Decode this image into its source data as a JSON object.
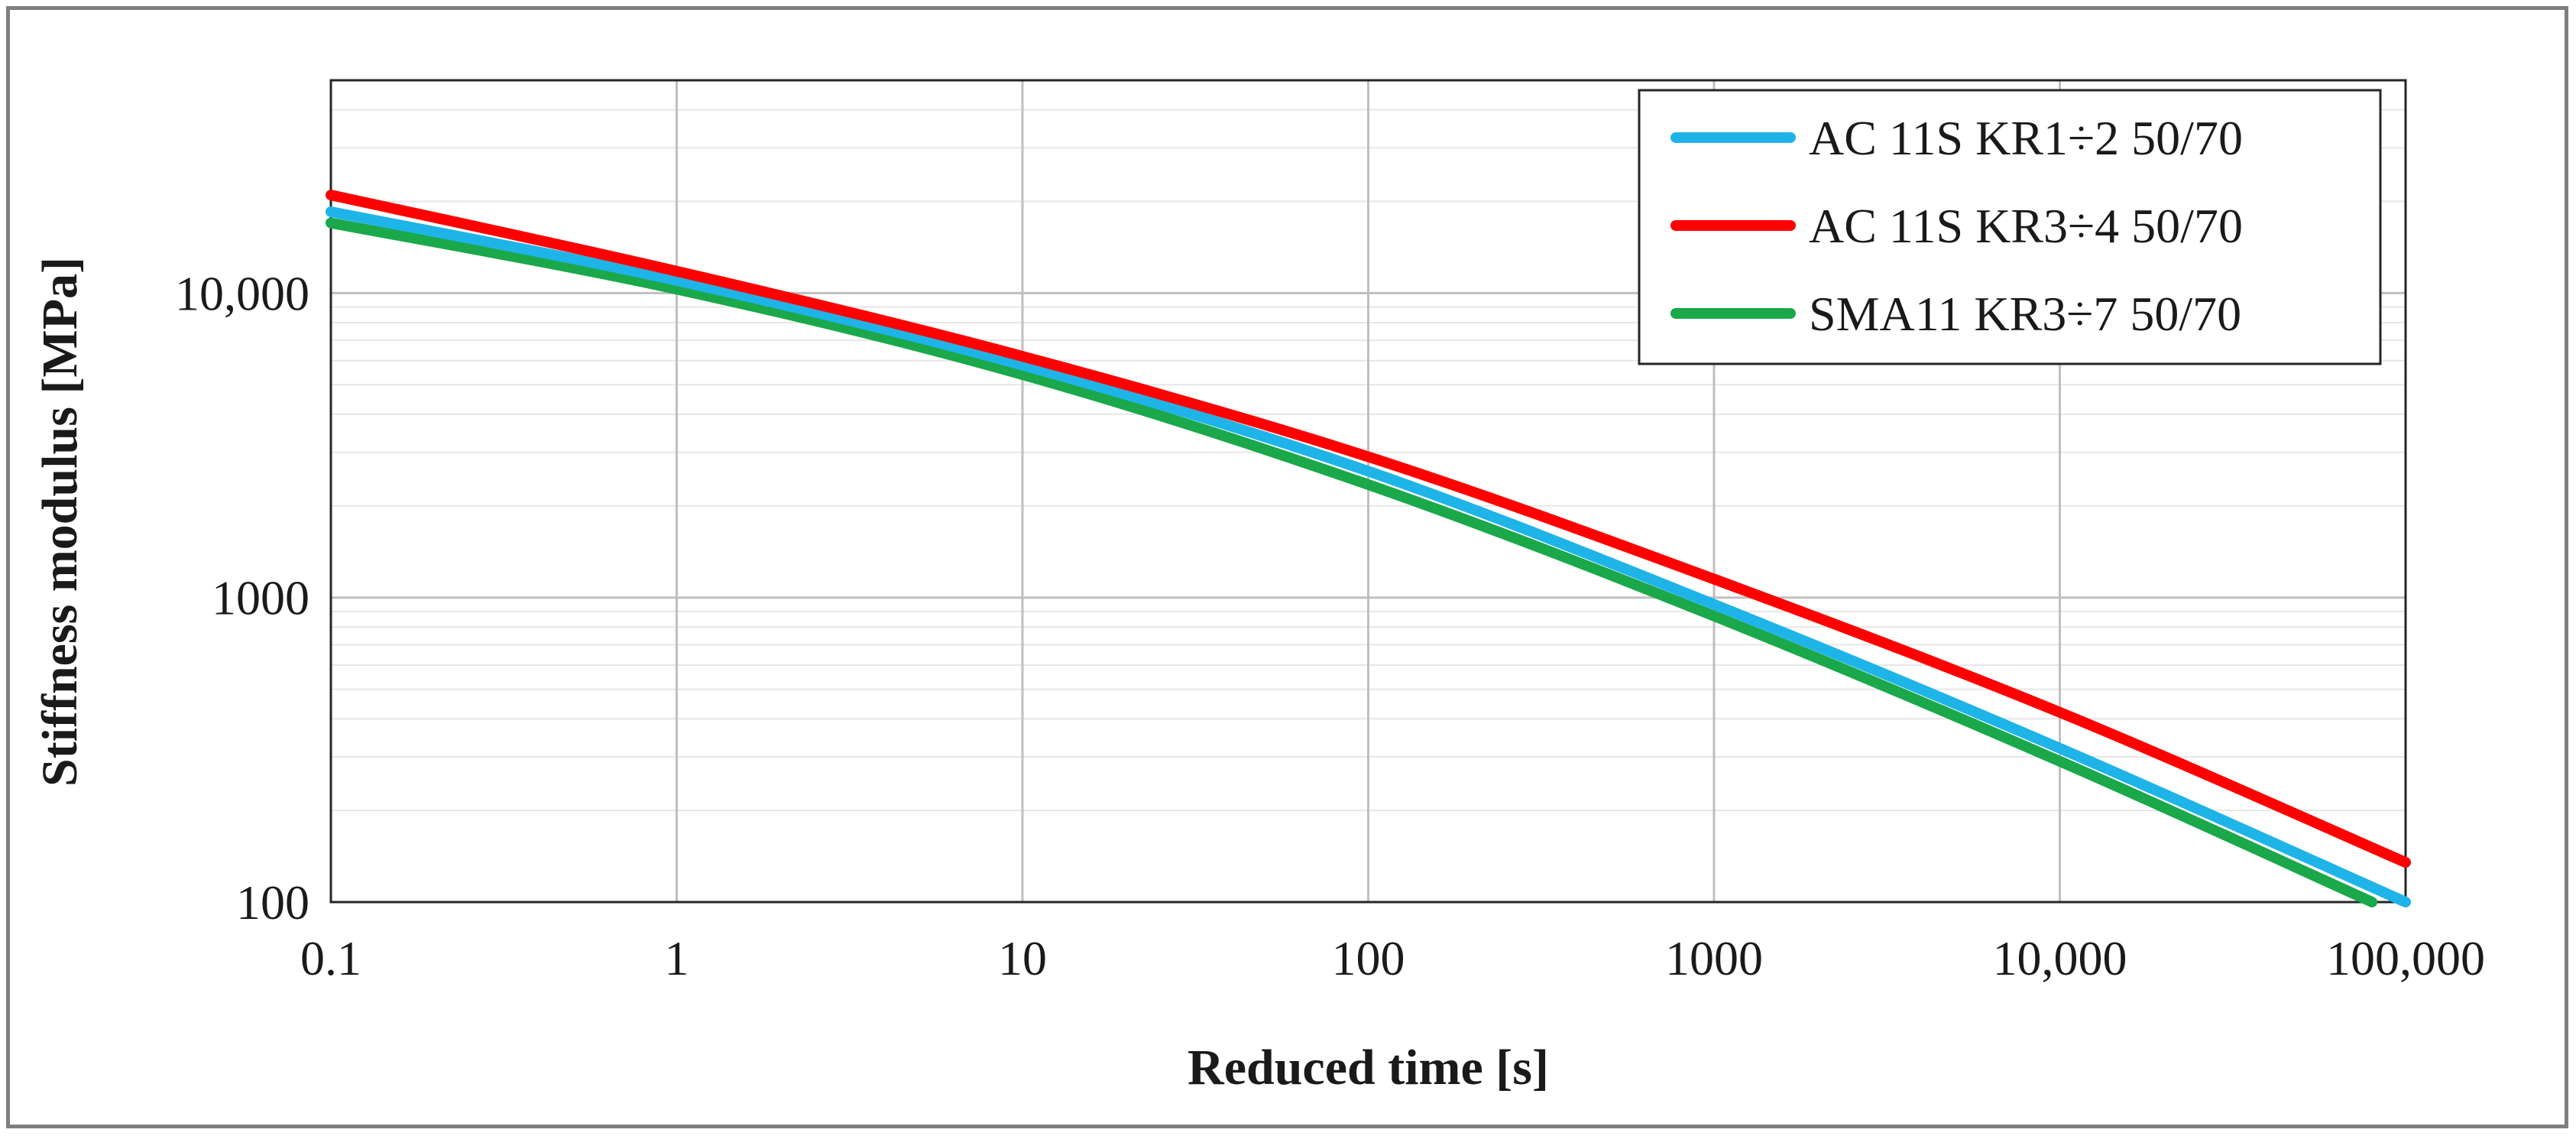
{
  "chart_data": {
    "type": "line",
    "title": "",
    "xlabel": "Reduced time [s]",
    "ylabel": "Stiffness modulus [MPa]",
    "x_scale": "log",
    "y_scale": "log",
    "xlim": [
      0.1,
      100000
    ],
    "ylim": [
      100,
      50000
    ],
    "grid": true,
    "legend_position": "top-right",
    "x_ticks": [
      0.1,
      1,
      10,
      100,
      1000,
      10000,
      100000
    ],
    "x_tick_labels": [
      "0.1",
      "1",
      "10",
      "100",
      "1000",
      "10,000",
      "100,000"
    ],
    "y_ticks": [
      100,
      1000,
      10000
    ],
    "y_tick_labels": [
      "100",
      "1000",
      "10,000"
    ],
    "series": [
      {
        "name": "AC 11S KR1÷2 50/70",
        "color": "#1fb4e8",
        "x": [
          0.1,
          1,
          10,
          100,
          1000,
          10000,
          100000
        ],
        "values": [
          18500,
          11000,
          5800,
          2600,
          950,
          320,
          100
        ]
      },
      {
        "name": "AC 11S KR3÷4 50/70",
        "color": "#ff0000",
        "x": [
          0.1,
          1,
          10,
          100,
          1000,
          10000,
          100000
        ],
        "values": [
          21000,
          11800,
          6200,
          2900,
          1150,
          420,
          135
        ]
      },
      {
        "name": "SMA11 KR3÷7 50/70",
        "color": "#1aa84a",
        "x": [
          0.1,
          1,
          10,
          100,
          1000,
          10000,
          80000
        ],
        "values": [
          17000,
          10300,
          5400,
          2350,
          870,
          290,
          100
        ]
      }
    ]
  }
}
